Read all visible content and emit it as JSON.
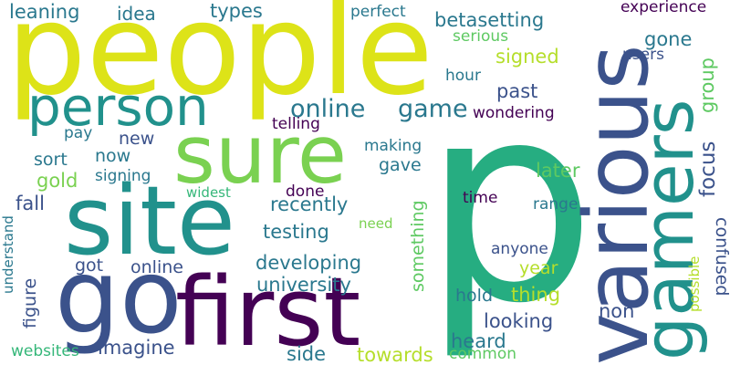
{
  "colors": {
    "background": "#ffffff",
    "dark_purple": "#440154",
    "indigo": "#3b528b",
    "blue_teal": "#31688e",
    "teal": "#21918c",
    "green_teal": "#26ad81",
    "green": "#5ec962",
    "light_green": "#7ad151",
    "yellow": "#dde318"
  },
  "words": [
    {
      "text": "people",
      "color": "#dde318"
    },
    {
      "text": "p",
      "color": "#26ad81"
    },
    {
      "text": "various",
      "color": "#3b528b"
    },
    {
      "text": "gamers",
      "color": "#21918c"
    },
    {
      "text": "sure",
      "color": "#7ad151"
    },
    {
      "text": "site",
      "color": "#21918c"
    },
    {
      "text": "go",
      "color": "#3b528b"
    },
    {
      "text": "first",
      "color": "#440154"
    },
    {
      "text": "person",
      "color": "#21918c"
    },
    {
      "text": "online",
      "color": "#2a788e"
    },
    {
      "text": "game",
      "color": "#2a788e"
    },
    {
      "text": "betasetting",
      "color": "#2a788e"
    },
    {
      "text": "experience",
      "color": "#440154"
    },
    {
      "text": "perfect",
      "color": "#2a788e"
    },
    {
      "text": "leaning",
      "color": "#2a788e"
    },
    {
      "text": "idea",
      "color": "#2a788e"
    },
    {
      "text": "types",
      "color": "#2a788e"
    },
    {
      "text": "serious",
      "color": "#5ec962"
    },
    {
      "text": "gone",
      "color": "#2a788e"
    },
    {
      "text": "group",
      "color": "#5ec962"
    },
    {
      "text": "signed",
      "color": "#b5de2b"
    },
    {
      "text": "users",
      "color": "#3b528b"
    },
    {
      "text": "hour",
      "color": "#2a788e"
    },
    {
      "text": "past",
      "color": "#3b528b"
    },
    {
      "text": "wondering",
      "color": "#440154"
    },
    {
      "text": "focus",
      "color": "#3b528b"
    },
    {
      "text": "telling",
      "color": "#440154"
    },
    {
      "text": "pay",
      "color": "#2a788e"
    },
    {
      "text": "new",
      "color": "#3b528b"
    },
    {
      "text": "making",
      "color": "#2a788e"
    },
    {
      "text": "now",
      "color": "#2a788e"
    },
    {
      "text": "sort",
      "color": "#2a788e"
    },
    {
      "text": "gave",
      "color": "#2a788e"
    },
    {
      "text": "later",
      "color": "#5ec962"
    },
    {
      "text": "gold",
      "color": "#7ad151"
    },
    {
      "text": "signing",
      "color": "#2a788e"
    },
    {
      "text": "widest",
      "color": "#35b779"
    },
    {
      "text": "done",
      "color": "#440154"
    },
    {
      "text": "fall",
      "color": "#3b528b"
    },
    {
      "text": "recently",
      "color": "#2a788e"
    },
    {
      "text": "time",
      "color": "#440154"
    },
    {
      "text": "range",
      "color": "#2a788e"
    },
    {
      "text": "confused",
      "color": "#3b528b"
    },
    {
      "text": "possible",
      "color": "#b5de2b"
    },
    {
      "text": "need",
      "color": "#7ad151"
    },
    {
      "text": "testing",
      "color": "#2a788e"
    },
    {
      "text": "something",
      "color": "#5ec962"
    },
    {
      "text": "anyone",
      "color": "#3b528b"
    },
    {
      "text": "understand",
      "color": "#2a788e"
    },
    {
      "text": "got",
      "color": "#3b528b"
    },
    {
      "text": "online",
      "color": "#3b528b"
    },
    {
      "text": "developing",
      "color": "#2a788e"
    },
    {
      "text": "year",
      "color": "#b5de2b"
    },
    {
      "text": "figure",
      "color": "#3b528b"
    },
    {
      "text": "university",
      "color": "#2a788e"
    },
    {
      "text": "thing",
      "color": "#b5de2b"
    },
    {
      "text": "hold",
      "color": "#2a788e"
    },
    {
      "text": "non",
      "color": "#3b528b"
    },
    {
      "text": "looking",
      "color": "#3b528b"
    },
    {
      "text": "imagine",
      "color": "#3b528b"
    },
    {
      "text": "heard",
      "color": "#2a788e"
    },
    {
      "text": "websites",
      "color": "#35b779"
    },
    {
      "text": "side",
      "color": "#2a788e"
    },
    {
      "text": "towards",
      "color": "#b5de2b"
    },
    {
      "text": "common",
      "color": "#5ec962"
    }
  ]
}
